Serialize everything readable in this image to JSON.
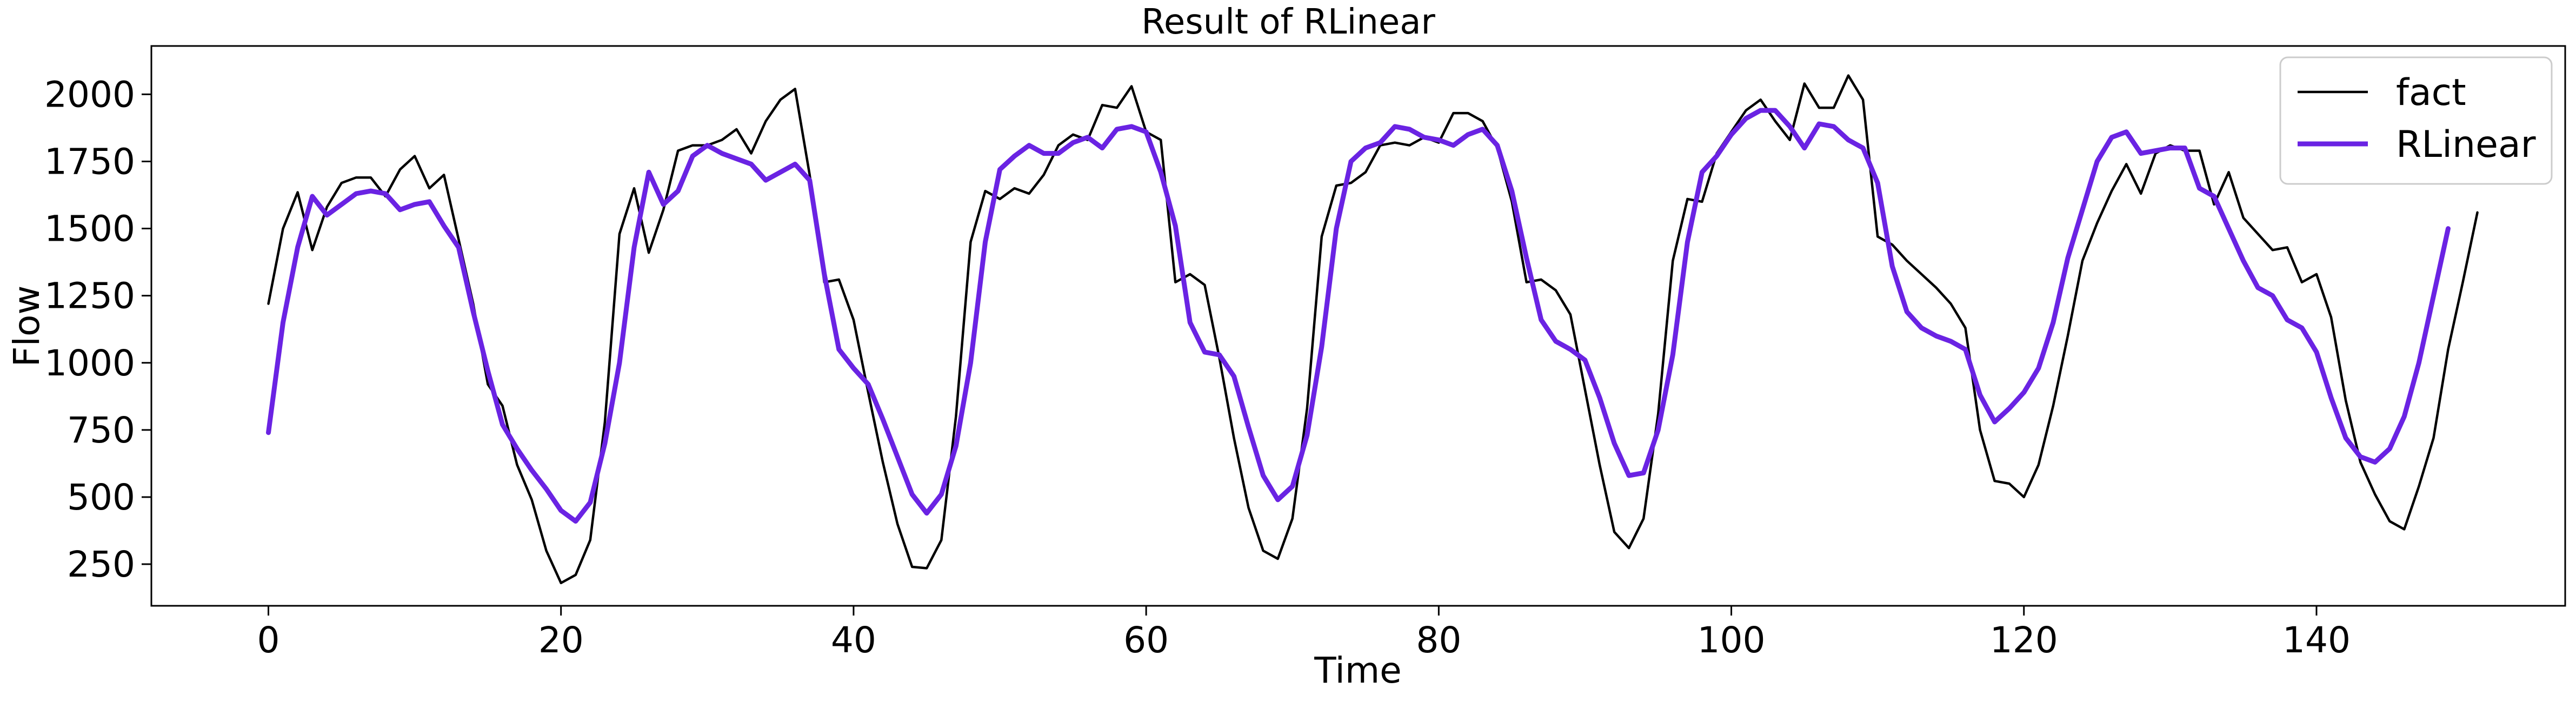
{
  "chart_data": {
    "type": "line",
    "title": "Result of RLinear",
    "xlabel": "Time",
    "ylabel": "Flow",
    "xlim": [
      -8,
      157
    ],
    "ylim": [
      95,
      2180
    ],
    "xticks": [
      0,
      20,
      40,
      60,
      80,
      100,
      120,
      140
    ],
    "yticks": [
      250,
      500,
      750,
      1000,
      1250,
      1500,
      1750,
      2000
    ],
    "grid": false,
    "legend_position": "top-right",
    "series": [
      {
        "name": "fact",
        "color": "#000000",
        "values": [
          1220,
          1500,
          1635,
          1420,
          1580,
          1670,
          1690,
          1690,
          1620,
          1720,
          1770,
          1650,
          1700,
          1460,
          1220,
          920,
          840,
          620,
          490,
          300,
          180,
          210,
          340,
          780,
          1480,
          1650,
          1410,
          1570,
          1790,
          1810,
          1810,
          1830,
          1870,
          1780,
          1900,
          1980,
          2020,
          1700,
          1300,
          1310,
          1160,
          890,
          630,
          400,
          240,
          235,
          340,
          800,
          1450,
          1640,
          1610,
          1650,
          1630,
          1700,
          1810,
          1850,
          1830,
          1960,
          1950,
          2030,
          1860,
          1830,
          1300,
          1330,
          1290,
          1020,
          720,
          460,
          300,
          270,
          420,
          830,
          1470,
          1660,
          1670,
          1710,
          1810,
          1820,
          1810,
          1840,
          1820,
          1930,
          1930,
          1900,
          1800,
          1600,
          1300,
          1310,
          1270,
          1180,
          900,
          620,
          370,
          310,
          420,
          810,
          1380,
          1610,
          1600,
          1780,
          1860,
          1940,
          1980,
          1900,
          1830,
          2040,
          1950,
          1950,
          2070,
          1980,
          1470,
          1440,
          1380,
          1330,
          1280,
          1220,
          1130,
          750,
          560,
          550,
          500,
          620,
          840,
          1100,
          1380,
          1520,
          1640,
          1740,
          1630,
          1780,
          1810,
          1790,
          1790,
          1590,
          1710,
          1540,
          1480,
          1420,
          1430,
          1300,
          1330,
          1170,
          860,
          630,
          510,
          410,
          380,
          540,
          720,
          1050,
          1300,
          1560
        ]
      },
      {
        "name": "RLinear",
        "color": "#6a23e3",
        "values": [
          740,
          1150,
          1430,
          1620,
          1550,
          1590,
          1630,
          1640,
          1630,
          1570,
          1590,
          1600,
          1510,
          1430,
          1190,
          970,
          770,
          680,
          600,
          530,
          450,
          410,
          480,
          700,
          1000,
          1430,
          1710,
          1590,
          1640,
          1770,
          1810,
          1780,
          1760,
          1740,
          1680,
          1710,
          1740,
          1680,
          1330,
          1050,
          980,
          920,
          790,
          650,
          510,
          440,
          510,
          690,
          1000,
          1450,
          1720,
          1770,
          1810,
          1780,
          1780,
          1820,
          1840,
          1800,
          1870,
          1880,
          1860,
          1710,
          1510,
          1150,
          1040,
          1030,
          950,
          760,
          580,
          490,
          540,
          730,
          1060,
          1500,
          1750,
          1800,
          1820,
          1880,
          1870,
          1840,
          1830,
          1810,
          1850,
          1870,
          1810,
          1640,
          1390,
          1160,
          1080,
          1050,
          1010,
          870,
          700,
          580,
          590,
          750,
          1030,
          1450,
          1710,
          1770,
          1850,
          1910,
          1940,
          1940,
          1880,
          1800,
          1890,
          1880,
          1830,
          1800,
          1670,
          1360,
          1190,
          1130,
          1100,
          1080,
          1050,
          880,
          780,
          830,
          890,
          980,
          1150,
          1390,
          1570,
          1750,
          1840,
          1860,
          1780,
          1790,
          1800,
          1800,
          1650,
          1620,
          1500,
          1380,
          1280,
          1250,
          1160,
          1130,
          1040,
          870,
          720,
          650,
          630,
          680,
          800,
          1000,
          1250,
          1500
        ]
      }
    ]
  }
}
